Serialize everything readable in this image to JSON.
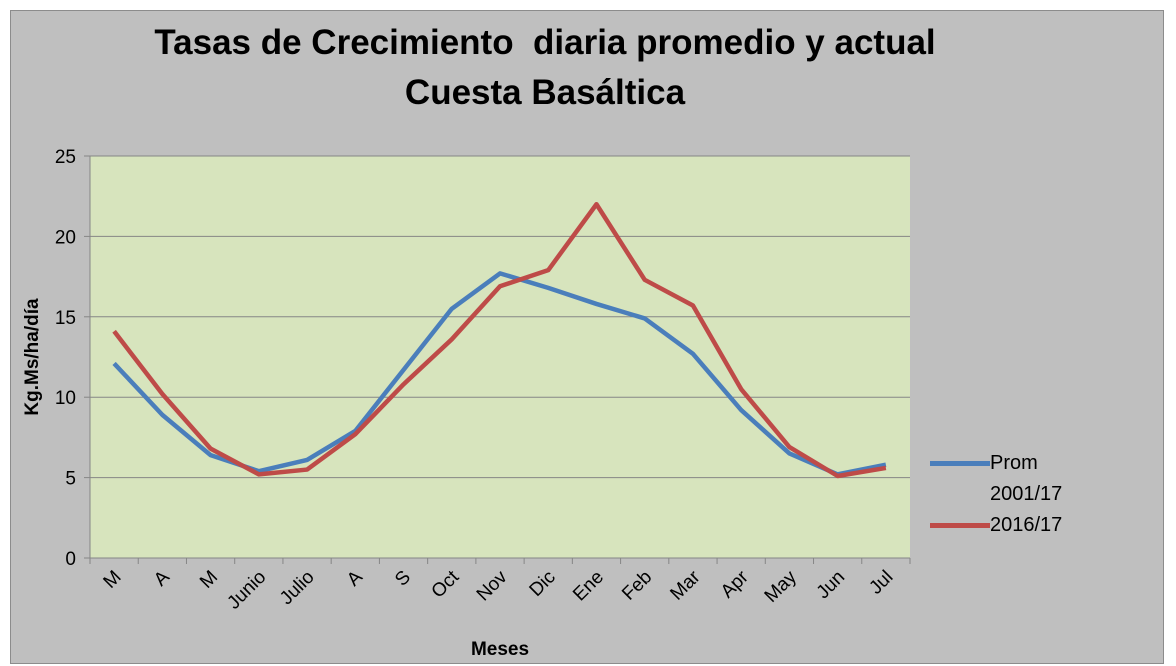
{
  "chart_data": {
    "type": "line",
    "title": "Tasas de Crecimiento  diaria promedio y actual\nCuesta Basáltica",
    "x_label": "Meses",
    "y_label": "Kg.Ms/ha/día",
    "categories": [
      "M",
      "A",
      "M",
      "Junio",
      "Julio",
      "A",
      "S",
      "Oct",
      "Nov",
      "Dic",
      "Ene",
      "Feb",
      "Mar",
      "Apr",
      "May",
      "Jun",
      "Jul"
    ],
    "series": [
      {
        "name": "Prom 2001/17",
        "color": "#4a7ebb",
        "values": [
          12.1,
          8.9,
          6.4,
          5.4,
          6.1,
          7.9,
          11.7,
          15.5,
          17.7,
          16.8,
          15.8,
          14.9,
          12.7,
          9.2,
          6.5,
          5.2,
          5.8
        ]
      },
      {
        "name": "2016/17",
        "color": "#be4b48",
        "values": [
          14.1,
          10.2,
          6.8,
          5.2,
          5.5,
          7.7,
          10.8,
          13.6,
          16.9,
          17.9,
          22.0,
          17.3,
          15.7,
          10.5,
          6.9,
          5.1,
          5.6
        ]
      }
    ],
    "ylim": [
      0,
      25
    ],
    "yticks": [
      0,
      5,
      10,
      15,
      20,
      25
    ],
    "grid": true,
    "plot_background": "#d7e4bd",
    "legend": "right"
  }
}
